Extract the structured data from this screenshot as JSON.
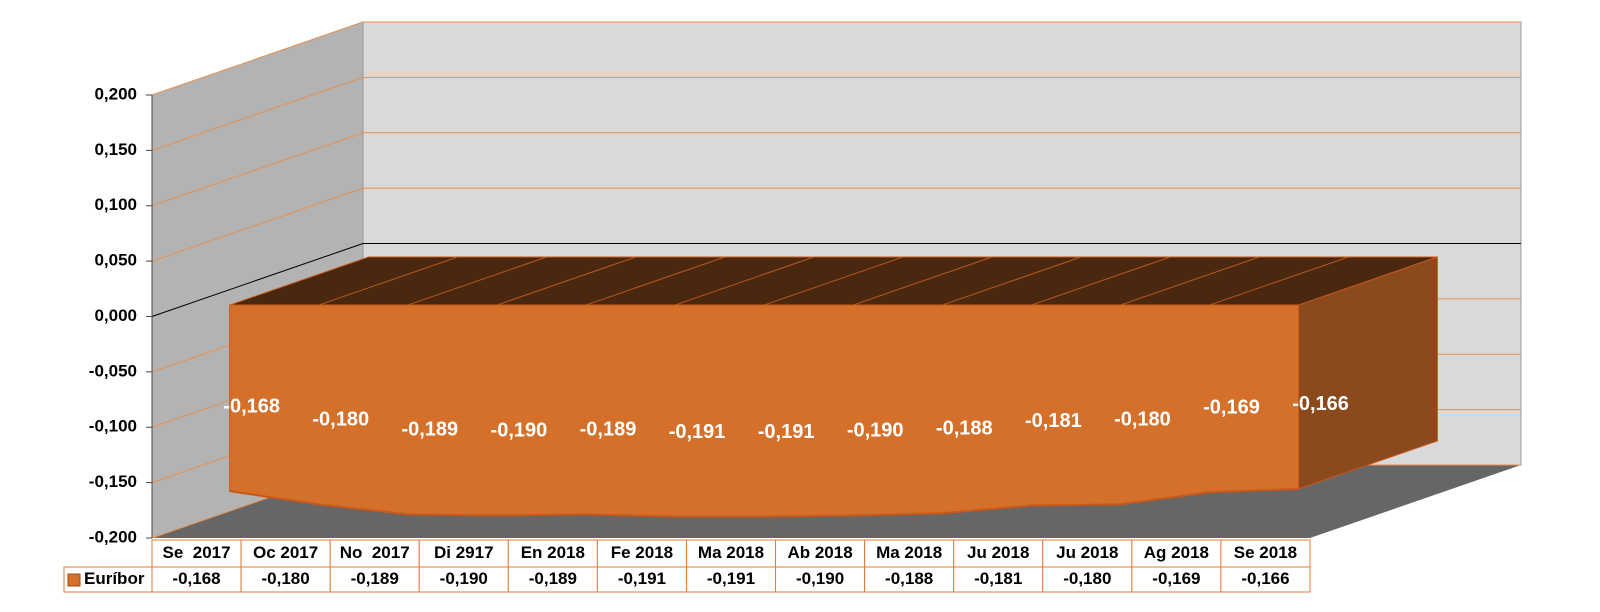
{
  "chart_data": {
    "type": "area3d",
    "categories": [
      "Se  2017",
      "Oc 2017",
      "No  2017",
      "Di 2917",
      "En 2018",
      "Fe 2018",
      "Ma 2018",
      "Ab 2018",
      "Ma 2018",
      "Ju 2018",
      "Ju 2018",
      "Ag 2018",
      "Se 2018"
    ],
    "series": [
      {
        "name": "Euríbor",
        "color": "#d5702b",
        "values": [
          -0.168,
          -0.18,
          -0.189,
          -0.19,
          -0.189,
          -0.191,
          -0.191,
          -0.19,
          -0.188,
          -0.181,
          -0.18,
          -0.169,
          -0.166
        ],
        "value_labels": [
          "-0,168",
          "-0,180",
          "-0,189",
          "-0,190",
          "-0,189",
          "-0,191",
          "-0,191",
          "-0,190",
          "-0,188",
          "-0,181",
          "-0,180",
          "-0,169",
          "-0,166"
        ]
      }
    ],
    "ylim": [
      -0.2,
      0.2
    ],
    "yticks": [
      {
        "value": -0.2,
        "label": "-0,200"
      },
      {
        "value": -0.15,
        "label": "-0,150"
      },
      {
        "value": -0.1,
        "label": "-0,100"
      },
      {
        "value": -0.05,
        "label": "-0,050"
      },
      {
        "value": 0,
        "label": "0,000"
      },
      {
        "value": 0.05,
        "label": "0,050"
      },
      {
        "value": 0.1,
        "label": "0,100"
      },
      {
        "value": 0.15,
        "label": "0,150"
      },
      {
        "value": 0.2,
        "label": "0,200"
      }
    ],
    "grid": true,
    "data_table": true
  }
}
